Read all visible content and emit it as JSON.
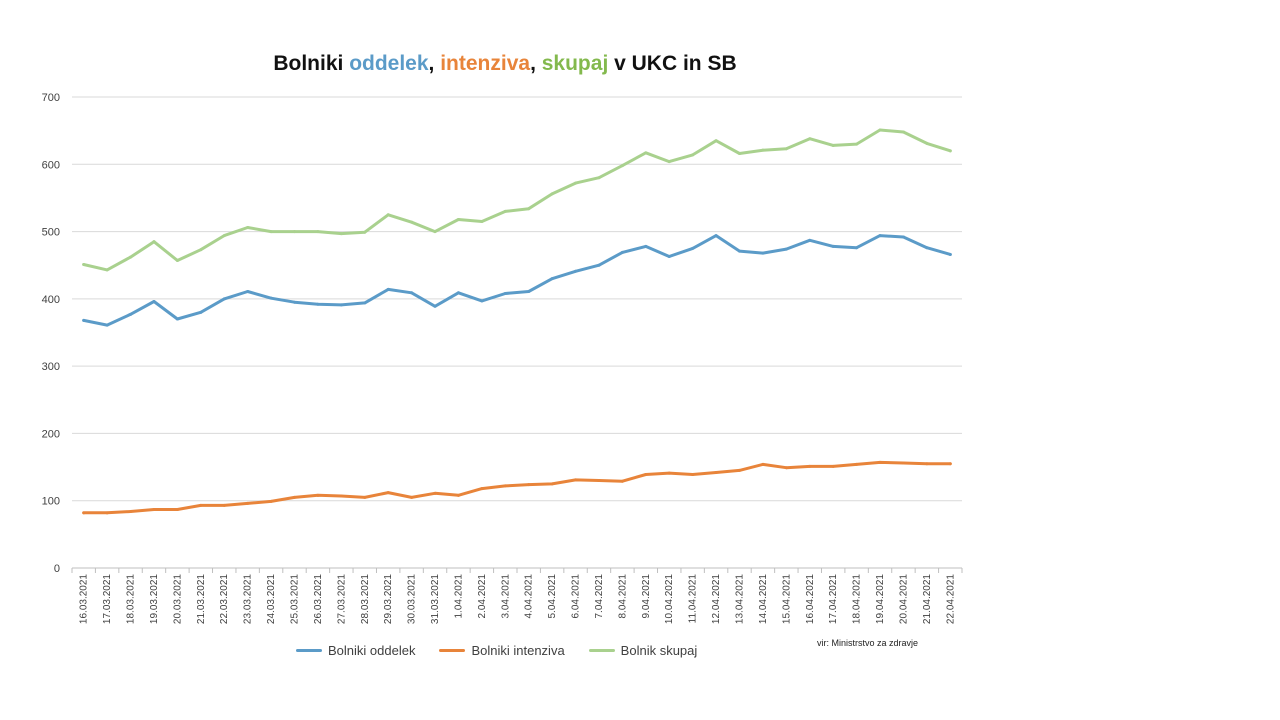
{
  "title_parts": {
    "p1": "Bolniki ",
    "p2": "oddelek",
    "p3": ", ",
    "p4": "intenziva",
    "p5": ", ",
    "p6": "skupaj",
    "p7": " v UKC in SB"
  },
  "source": "vir: Ministrstvo za zdravje",
  "colors": {
    "oddelek": "#5b9bc8",
    "intenziva": "#e8843a",
    "skupaj": "#a9d18e"
  },
  "chart_data": {
    "type": "line",
    "title": "Bolniki oddelek, intenziva, skupaj v UKC in SB",
    "ylim": [
      0,
      700
    ],
    "yticks": [
      0,
      100,
      200,
      300,
      400,
      500,
      600,
      700
    ],
    "grid": true,
    "legend_position": "bottom",
    "categories": [
      "16.03.2021",
      "17.03.2021",
      "18.03.2021",
      "19.03.2021",
      "20.03.2021",
      "21.03.2021",
      "22.03.2021",
      "23.03.2021",
      "24.03.2021",
      "25.03.2021",
      "26.03.2021",
      "27.03.2021",
      "28.03.2021",
      "29.03.2021",
      "30.03.2021",
      "31.03.2021",
      "1.04.2021",
      "2.04.2021",
      "3.04.2021",
      "4.04.2021",
      "5.04.2021",
      "6.04.2021",
      "7.04.2021",
      "8.04.2021",
      "9.04.2021",
      "10.04.2021",
      "11.04.2021",
      "12.04.2021",
      "13.04.2021",
      "14.04.2021",
      "15.04.2021",
      "16.04.2021",
      "17.04.2021",
      "18.04.2021",
      "19.04.2021",
      "20.04.2021",
      "21.04.2021",
      "22.04.2021"
    ],
    "series": [
      {
        "name": "Bolniki oddelek",
        "color": "#5b9bc8",
        "values": [
          368,
          361,
          377,
          396,
          370,
          380,
          400,
          411,
          401,
          395,
          392,
          391,
          394,
          414,
          409,
          389,
          409,
          397,
          408,
          411,
          430,
          441,
          450,
          469,
          478,
          463,
          475,
          494,
          471,
          468,
          474,
          487,
          478,
          476,
          494,
          492,
          476,
          466
        ]
      },
      {
        "name": "Bolniki intenziva",
        "color": "#e8843a",
        "values": [
          82,
          82,
          84,
          87,
          87,
          93,
          93,
          96,
          99,
          105,
          108,
          107,
          105,
          112,
          105,
          111,
          108,
          118,
          122,
          124,
          125,
          131,
          130,
          129,
          139,
          141,
          139,
          142,
          145,
          154,
          149,
          151,
          151,
          154,
          157,
          156,
          155,
          155
        ]
      },
      {
        "name": "Bolnik skupaj",
        "color": "#a9d18e",
        "values": [
          451,
          443,
          462,
          485,
          457,
          473,
          494,
          506,
          500,
          500,
          500,
          497,
          499,
          525,
          514,
          500,
          518,
          515,
          530,
          534,
          556,
          572,
          580,
          598,
          617,
          604,
          614,
          635,
          616,
          621,
          623,
          638,
          628,
          630,
          651,
          648,
          631,
          620
        ]
      }
    ]
  }
}
